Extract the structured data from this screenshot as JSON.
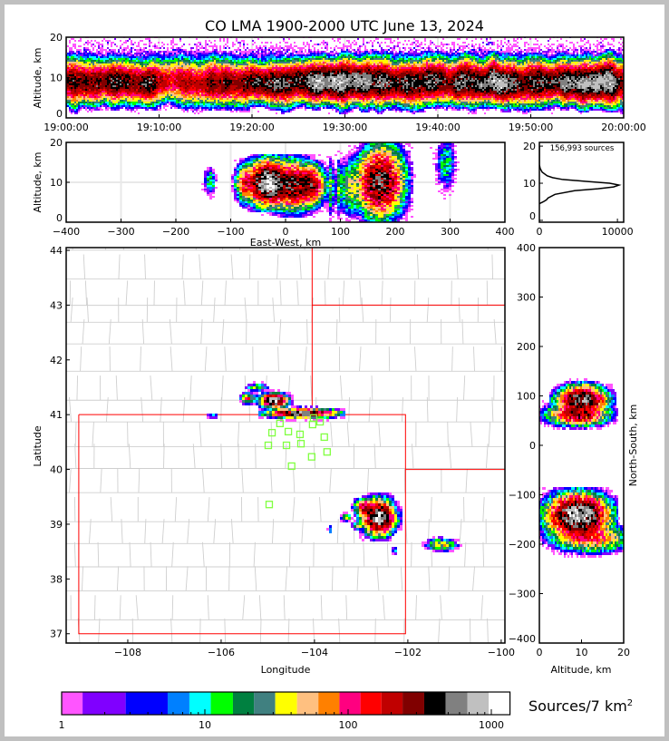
{
  "chart_data": {
    "type": "heatmap",
    "title": "CO LMA 1900-2000 UTC June 13, 2024",
    "colorbar": {
      "label": "Sources/7 km",
      "label_sup": "2",
      "scale": "log",
      "ticks": [
        1,
        10,
        100,
        1000
      ],
      "tick_labels": [
        "1",
        "10",
        "100",
        "1000"
      ],
      "edges": [
        1,
        1.4,
        2.8,
        5.5,
        7.8,
        11,
        15.7,
        22,
        31,
        44,
        62,
        87,
        122,
        171,
        240,
        340,
        480,
        680,
        960,
        1350
      ],
      "colors": [
        "#ff55ff",
        "#8000ff",
        "#0000ff",
        "#0080ff",
        "#00ffff",
        "#00ff00",
        "#008040",
        "#408080",
        "#ffff00",
        "#ffc080",
        "#ff8000",
        "#ff0080",
        "#ff0000",
        "#c00000",
        "#800000",
        "#000000",
        "#808080",
        "#c0c0c0",
        "#ffffff"
      ]
    },
    "time_height": {
      "ylabel": "Altitude, km",
      "xlim_minutes": [
        0,
        60
      ],
      "xticks_minutes": [
        0,
        10,
        20,
        30,
        40,
        50,
        60
      ],
      "xtick_labels": [
        "19:00:00",
        "19:10:00",
        "19:20:00",
        "19:30:00",
        "19:40:00",
        "19:50:00",
        "20:00:00"
      ],
      "ylim": [
        0,
        20
      ],
      "yticks": [
        0,
        10,
        20
      ],
      "band_center_km": 9,
      "activity_peak_per_5min": [
        250,
        300,
        150,
        200,
        300,
        500,
        400,
        350,
        300,
        450,
        400,
        450
      ]
    },
    "ew_alt": {
      "xlabel": "East-West, km",
      "ylabel": "Altitude, km",
      "xlim": [
        -400,
        400
      ],
      "xticks": [
        -400,
        -300,
        -200,
        -100,
        0,
        100,
        200,
        300,
        400
      ],
      "ylim": [
        0,
        20
      ],
      "yticks": [
        0,
        10,
        20
      ],
      "clusters": [
        {
          "x": -140,
          "y": 10.5,
          "sx": 5,
          "sy": 1.5,
          "peak": 20
        },
        {
          "x": -75,
          "y": 10,
          "sx": 8,
          "sy": 2,
          "peak": 150
        },
        {
          "x": -35,
          "y": 10,
          "sx": 15,
          "sy": 2.3,
          "peak": 900
        },
        {
          "x": 10,
          "y": 9.5,
          "sx": 20,
          "sy": 2.5,
          "peak": 400
        },
        {
          "x": 45,
          "y": 9.5,
          "sx": 10,
          "sy": 2,
          "peak": 300
        },
        {
          "x": 80,
          "y": 9,
          "sx": 3,
          "sy": 3,
          "peak": 25
        },
        {
          "x": 95,
          "y": 9,
          "sx": 3,
          "sy": 3,
          "peak": 25
        },
        {
          "x": 115,
          "y": 9,
          "sx": 8,
          "sy": 3,
          "peak": 40
        },
        {
          "x": 170,
          "y": 10,
          "sx": 18,
          "sy": 3.5,
          "peak": 450
        },
        {
          "x": 175,
          "y": 15,
          "sx": 18,
          "sy": 3.5,
          "peak": 20
        },
        {
          "x": 290,
          "y": 15,
          "sx": 8,
          "sy": 3,
          "peak": 15
        }
      ]
    },
    "histogram": {
      "annotation": "156,993 sources",
      "xlim": [
        0,
        10800
      ],
      "xticks": [
        0,
        10000
      ],
      "ylim": [
        -0.5,
        21
      ],
      "yticks": [
        0,
        10,
        20
      ],
      "profile_alt_km": [
        4.5,
        5,
        5.5,
        6,
        7,
        8,
        8.5,
        9,
        9.5,
        10,
        10.5,
        11,
        11.5,
        12,
        13,
        14,
        15,
        20
      ],
      "profile_count": [
        0,
        500,
        900,
        1100,
        2000,
        4500,
        7500,
        9500,
        10200,
        9000,
        6000,
        3000,
        1700,
        1000,
        350,
        100,
        0,
        0
      ]
    },
    "map": {
      "xlabel": "Longitude",
      "ylabel": "Latitude",
      "xlim": [
        -109.32,
        -99.92
      ],
      "ylim": [
        36.83,
        44.05
      ],
      "xticks": [
        -108,
        -106,
        -104,
        -102,
        -100
      ],
      "yticks": [
        37,
        38,
        39,
        40,
        41,
        42,
        43,
        44
      ],
      "state_borders": [
        [
          [
            -109.05,
            41
          ],
          [
            -102.05,
            41
          ],
          [
            -102.05,
            37
          ],
          [
            -109.05,
            37
          ],
          [
            -109.05,
            41
          ]
        ],
        [
          [
            -104.05,
            44.05
          ],
          [
            -104.05,
            41
          ]
        ],
        [
          [
            -104.05,
            43
          ],
          [
            -99.92,
            43
          ]
        ],
        [
          [
            -102.05,
            40
          ],
          [
            -99.92,
            40
          ]
        ]
      ],
      "stations": [
        [
          -104.02,
          40.94
        ],
        [
          -103.88,
          40.87
        ],
        [
          -104.04,
          40.82
        ],
        [
          -104.74,
          40.84
        ],
        [
          -104.91,
          40.67
        ],
        [
          -104.56,
          40.69
        ],
        [
          -104.31,
          40.64
        ],
        [
          -103.79,
          40.59
        ],
        [
          -104.99,
          40.44
        ],
        [
          -104.6,
          40.44
        ],
        [
          -104.29,
          40.47
        ],
        [
          -103.73,
          40.32
        ],
        [
          -104.06,
          40.23
        ],
        [
          -104.49,
          40.06
        ],
        [
          -104.97,
          39.36
        ]
      ],
      "clusters": [
        {
          "x": -104.9,
          "y": 41.28,
          "sx": 0.12,
          "sy": 0.05,
          "peak": 800
        },
        {
          "x": -104.3,
          "y": 41.05,
          "sx": 0.3,
          "sy": 0.035,
          "peak": 600
        },
        {
          "x": -105.45,
          "y": 41.32,
          "sx": 0.07,
          "sy": 0.04,
          "peak": 100
        },
        {
          "x": -105.25,
          "y": 41.52,
          "sx": 0.1,
          "sy": 0.03,
          "peak": 30
        },
        {
          "x": -106.2,
          "y": 41.0,
          "sx": 0.06,
          "sy": 0.015,
          "peak": 20
        },
        {
          "x": -102.65,
          "y": 39.15,
          "sx": 0.14,
          "sy": 0.13,
          "peak": 800
        },
        {
          "x": -102.95,
          "y": 39.32,
          "sx": 0.09,
          "sy": 0.07,
          "peak": 200
        },
        {
          "x": -103.35,
          "y": 39.15,
          "sx": 0.05,
          "sy": 0.03,
          "peak": 40
        },
        {
          "x": -103.1,
          "y": 39.0,
          "sx": 0.05,
          "sy": 0.03,
          "peak": 40
        },
        {
          "x": -103.7,
          "y": 38.93,
          "sx": 0.02,
          "sy": 0.03,
          "peak": 20
        },
        {
          "x": -101.3,
          "y": 38.65,
          "sx": 0.14,
          "sy": 0.05,
          "peak": 50
        },
        {
          "x": -102.3,
          "y": 38.55,
          "sx": 0.03,
          "sy": 0.04,
          "peak": 10
        }
      ]
    },
    "ns_alt": {
      "xlabel": "Altitude, km",
      "ylabel": "North-South, km",
      "xlim": [
        0,
        20
      ],
      "xticks": [
        0,
        10,
        20
      ],
      "ylim": [
        -400,
        400
      ],
      "yticks": [
        -400,
        -300,
        -200,
        -100,
        0,
        100,
        200,
        300,
        400
      ],
      "clusters": [
        {
          "x": 10,
          "y": 95,
          "sx": 2.5,
          "sy": 10,
          "peak": 600
        },
        {
          "x": 9,
          "y": 65,
          "sx": 3,
          "sy": 9,
          "peak": 300
        },
        {
          "x": 10,
          "y": 120,
          "sx": 2,
          "sy": 5,
          "peak": 50
        },
        {
          "x": 9,
          "y": -140,
          "sx": 3,
          "sy": 18,
          "peak": 900
        },
        {
          "x": 12,
          "y": -185,
          "sx": 4,
          "sy": 12,
          "peak": 100
        }
      ]
    }
  }
}
